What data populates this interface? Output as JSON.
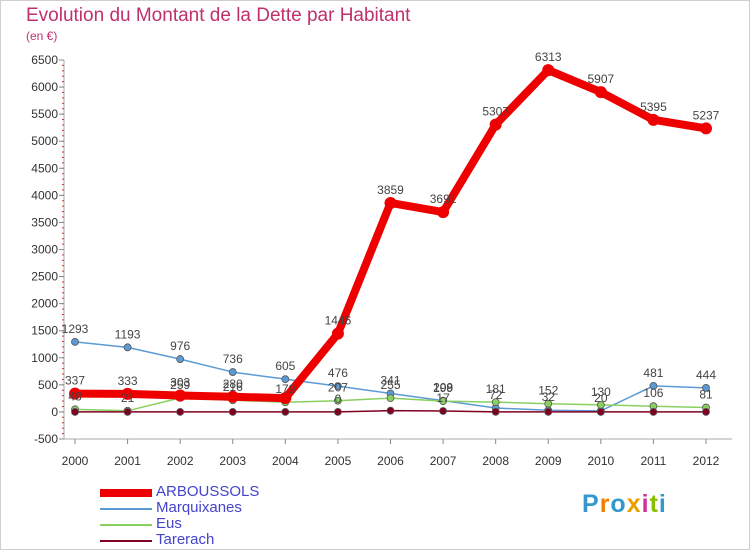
{
  "title": "Evolution du Montant de la Dette par Habitant",
  "unit": "(en €)",
  "logo": "Proxiti",
  "chart_data": {
    "type": "line",
    "title": "Evolution du Montant de la Dette par Habitant",
    "ylabel": "(en €)",
    "xlabel": "",
    "x": [
      "2000",
      "2001",
      "2002",
      "2003",
      "2004",
      "2005",
      "2006",
      "2007",
      "2008",
      "2009",
      "2010",
      "2011",
      "2012"
    ],
    "ylim": [
      -500,
      6500
    ],
    "yticks": [
      -500,
      0,
      500,
      1000,
      1500,
      2000,
      2500,
      3000,
      3500,
      4000,
      4500,
      5000,
      5500,
      6000,
      6500
    ],
    "grid": false,
    "legend": "bottom-left",
    "series": [
      {
        "name": "ARBOUSSOLS",
        "color": "#ee0000",
        "values": [
          337,
          333,
          303,
          280,
          256,
          1446,
          3859,
          3691,
          5307,
          6313,
          5907,
          5395,
          5237
        ],
        "labels": [
          "337",
          "333",
          "303",
          "280",
          "",
          "1446",
          "3859",
          "3691",
          "5307",
          "6313",
          "5907",
          "5395",
          "5237"
        ]
      },
      {
        "name": "Marquixanes",
        "color": "#5b9bd5",
        "values": [
          1293,
          1193,
          976,
          736,
          605,
          476,
          341,
          208,
          72,
          32,
          20,
          481,
          444
        ],
        "labels": [
          "1293",
          "1193",
          "976",
          "736",
          "605",
          "476",
          "341",
          "208",
          "72",
          "32",
          "20",
          "481",
          "444"
        ]
      },
      {
        "name": "Eus",
        "color": "#88d060",
        "values": [
          48,
          21,
          259,
          216,
          179,
          207,
          255,
          199,
          181,
          152,
          130,
          106,
          81
        ],
        "labels": [
          "48",
          "21",
          "259",
          "216",
          "179",
          "207",
          "255",
          "199",
          "181",
          "152",
          "130",
          "106",
          "81"
        ]
      },
      {
        "name": "Tarerach",
        "color": "#800020",
        "values": [
          0,
          0,
          0,
          0,
          0,
          0,
          23,
          17,
          2,
          2,
          0,
          0,
          0
        ],
        "labels": [
          "",
          "",
          "",
          "",
          "",
          "0",
          "",
          "17",
          "",
          "",
          "",
          "",
          ""
        ]
      }
    ]
  }
}
